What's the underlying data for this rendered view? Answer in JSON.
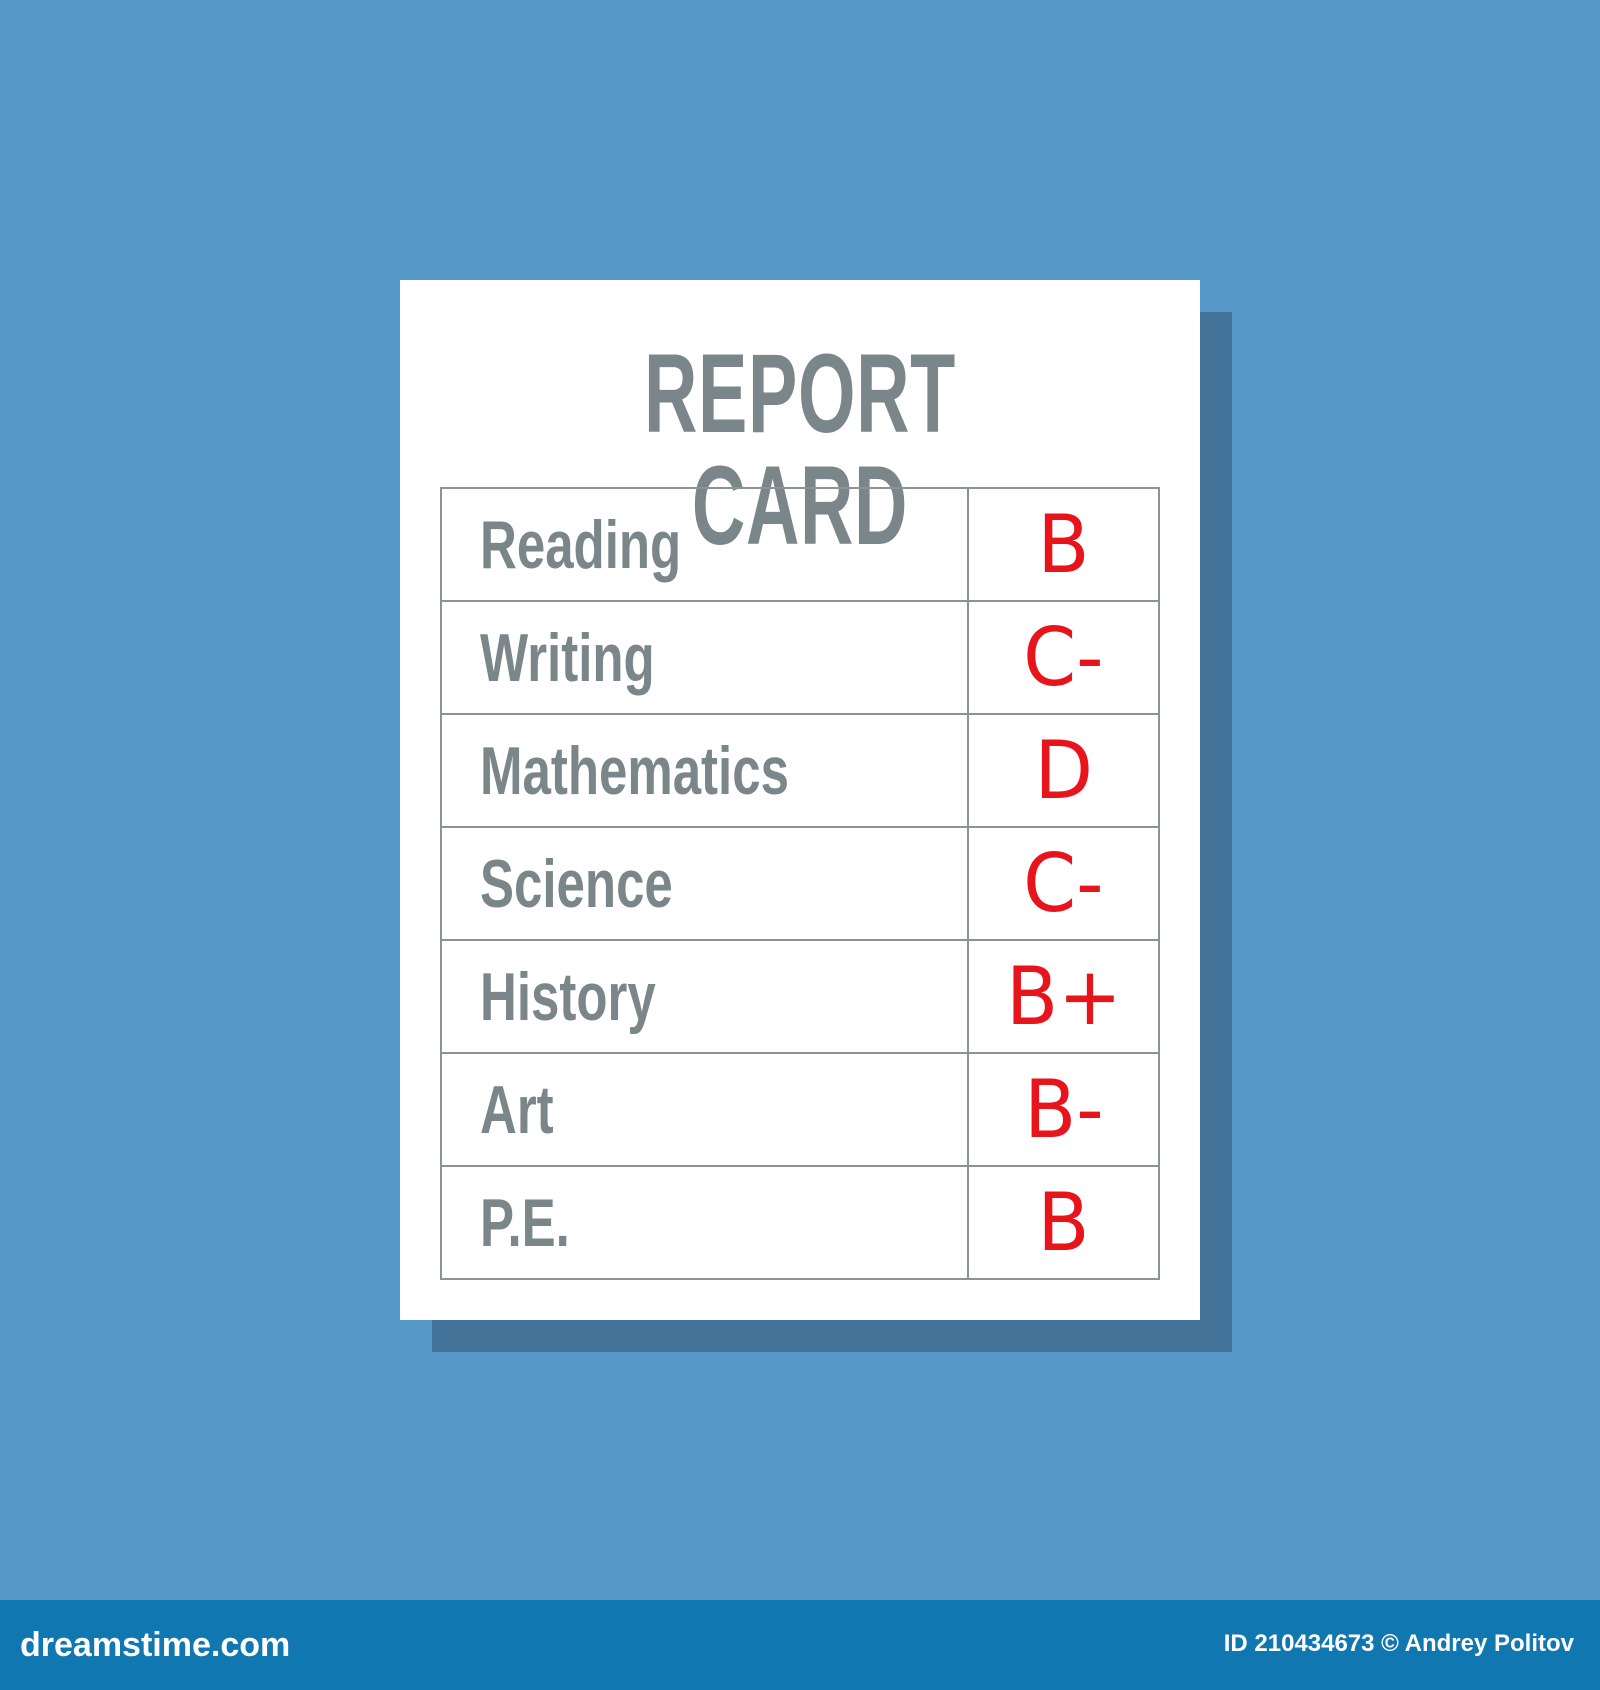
{
  "report_card": {
    "title": "REPORT CARD",
    "rows": [
      {
        "subject": "Reading",
        "grade": "B"
      },
      {
        "subject": "Writing",
        "grade": "C-"
      },
      {
        "subject": "Mathematics",
        "grade": "D"
      },
      {
        "subject": "Science",
        "grade": "C-"
      },
      {
        "subject": "History",
        "grade": "B+"
      },
      {
        "subject": "Art",
        "grade": "B-"
      },
      {
        "subject": "P.E.",
        "grade": "B"
      }
    ]
  },
  "footer": {
    "brand": "dreamstime.com",
    "credit": "ID 210434673 © Andrey Politov"
  },
  "colors": {
    "background": "#5597c7",
    "grade_red": "#e8141c",
    "text_gray": "#7a868a",
    "footer_bar": "#1077b0"
  }
}
